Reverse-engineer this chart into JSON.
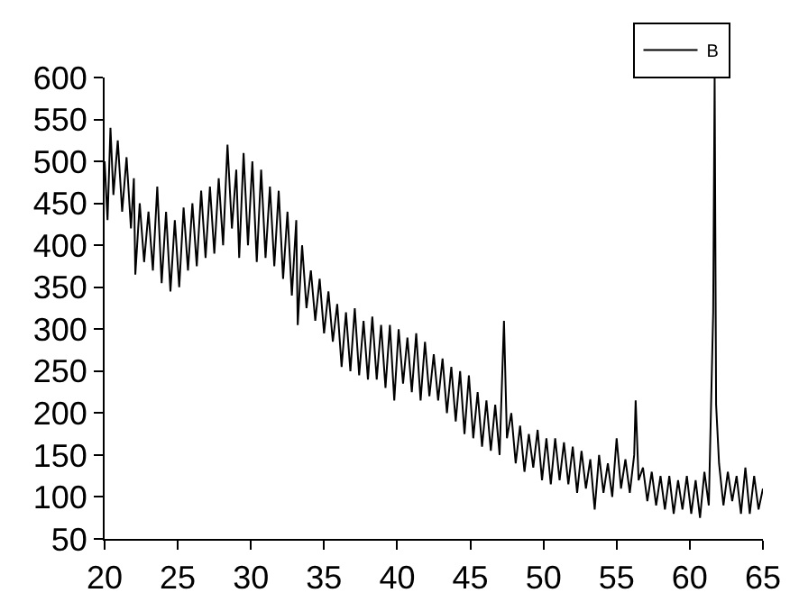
{
  "chart_data": {
    "type": "line",
    "legend": "top right",
    "grid": false,
    "marker": "none",
    "line_style": "solid",
    "xlim": [
      20,
      65
    ],
    "xticks": [
      20,
      25,
      30,
      35,
      40,
      45,
      50,
      55,
      60,
      65
    ],
    "ylim": [
      50,
      600
    ],
    "yticks": [
      50,
      100,
      150,
      200,
      250,
      300,
      350,
      400,
      450,
      500,
      550,
      600
    ],
    "series": [
      {
        "name": "B",
        "color": "#000000",
        "x": [
          20.0,
          20.2,
          20.4,
          20.6,
          20.9,
          21.2,
          21.5,
          21.8,
          22.0,
          22.1,
          22.4,
          22.7,
          23.0,
          23.3,
          23.6,
          23.9,
          24.2,
          24.5,
          24.8,
          25.1,
          25.4,
          25.7,
          26.0,
          26.3,
          26.6,
          26.9,
          27.2,
          27.5,
          27.8,
          28.1,
          28.4,
          28.7,
          29.0,
          29.2,
          29.5,
          29.8,
          30.1,
          30.4,
          30.7,
          31.0,
          31.3,
          31.6,
          31.9,
          32.2,
          32.5,
          32.8,
          33.1,
          33.2,
          33.5,
          33.8,
          34.1,
          34.4,
          34.7,
          35.0,
          35.3,
          35.6,
          35.9,
          36.2,
          36.5,
          36.8,
          37.1,
          37.4,
          37.7,
          38.0,
          38.3,
          38.6,
          38.9,
          39.2,
          39.5,
          39.8,
          40.1,
          40.4,
          40.7,
          41.0,
          41.3,
          41.6,
          41.9,
          42.2,
          42.5,
          42.8,
          43.1,
          43.4,
          43.7,
          44.0,
          44.3,
          44.6,
          44.9,
          45.2,
          45.5,
          45.8,
          46.1,
          46.4,
          46.7,
          47.0,
          47.3,
          47.5,
          47.8,
          48.1,
          48.4,
          48.7,
          49.0,
          49.3,
          49.6,
          49.9,
          50.2,
          50.5,
          50.8,
          51.1,
          51.4,
          51.7,
          52.0,
          52.3,
          52.6,
          52.9,
          53.2,
          53.5,
          53.8,
          54.1,
          54.4,
          54.7,
          55.0,
          55.3,
          55.6,
          55.9,
          56.2,
          56.3,
          56.5,
          56.8,
          57.1,
          57.4,
          57.7,
          58.0,
          58.3,
          58.6,
          58.9,
          59.2,
          59.5,
          59.8,
          60.1,
          60.4,
          60.7,
          61.0,
          61.3,
          61.6,
          61.7,
          61.8,
          62.0,
          62.3,
          62.6,
          62.9,
          63.2,
          63.5,
          63.8,
          64.1,
          64.4,
          64.7,
          65.0
        ],
        "values": [
          500,
          430,
          540,
          460,
          525,
          440,
          505,
          420,
          480,
          365,
          450,
          380,
          440,
          370,
          470,
          355,
          440,
          345,
          430,
          350,
          445,
          370,
          450,
          375,
          465,
          385,
          470,
          390,
          480,
          400,
          520,
          420,
          490,
          385,
          510,
          400,
          500,
          380,
          490,
          385,
          470,
          375,
          465,
          360,
          440,
          340,
          430,
          305,
          400,
          325,
          370,
          310,
          360,
          295,
          345,
          285,
          330,
          255,
          320,
          250,
          325,
          245,
          310,
          240,
          315,
          240,
          305,
          230,
          305,
          215,
          300,
          235,
          290,
          225,
          295,
          215,
          285,
          220,
          270,
          215,
          265,
          200,
          255,
          190,
          250,
          175,
          245,
          170,
          225,
          160,
          215,
          155,
          210,
          150,
          310,
          170,
          200,
          140,
          185,
          130,
          175,
          135,
          180,
          120,
          170,
          115,
          170,
          120,
          165,
          115,
          160,
          105,
          155,
          110,
          145,
          85,
          150,
          105,
          140,
          100,
          170,
          110,
          145,
          105,
          150,
          215,
          120,
          135,
          95,
          130,
          90,
          125,
          85,
          125,
          80,
          120,
          85,
          125,
          80,
          120,
          75,
          130,
          90,
          320,
          600,
          210,
          140,
          90,
          130,
          95,
          125,
          80,
          135,
          80,
          125,
          85,
          110
        ]
      }
    ]
  }
}
